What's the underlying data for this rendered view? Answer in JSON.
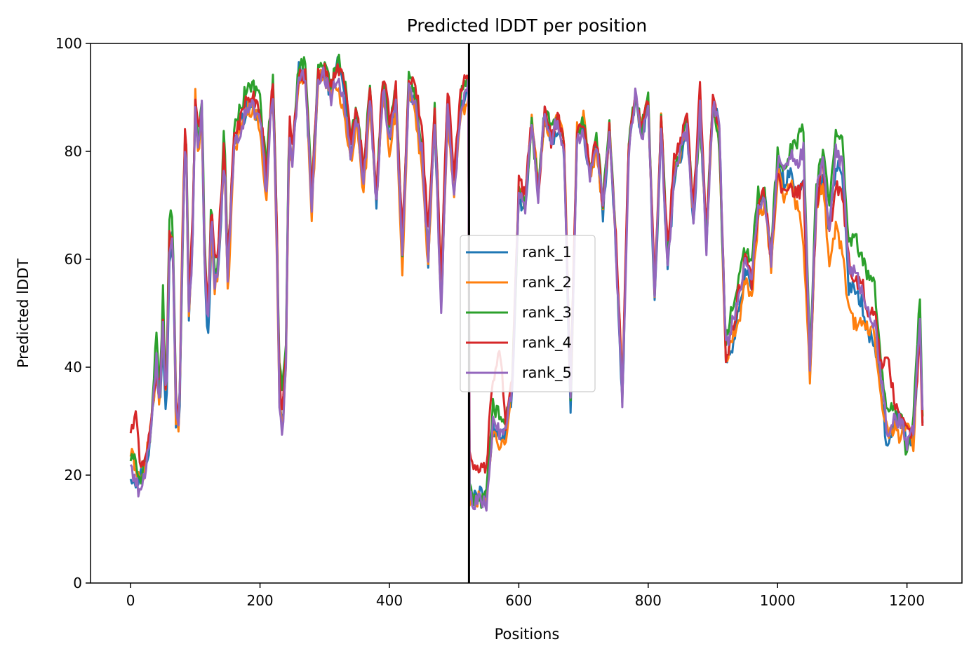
{
  "chart_data": {
    "type": "line",
    "title": "Predicted lDDT per position",
    "xlabel": "Positions",
    "ylabel": "Predicted lDDT",
    "xlim": [
      -62,
      1285
    ],
    "ylim": [
      0,
      100
    ],
    "xticks": [
      0,
      200,
      400,
      600,
      800,
      1000,
      1200
    ],
    "yticks": [
      0,
      20,
      40,
      60,
      80,
      100
    ],
    "grid": false,
    "legend_position": "center",
    "vertical_line_x": 523,
    "anchor_positions": [
      0,
      10,
      15,
      20,
      30,
      40,
      45,
      50,
      55,
      60,
      65,
      70,
      75,
      80,
      85,
      90,
      95,
      100,
      105,
      110,
      115,
      120,
      125,
      130,
      135,
      140,
      145,
      150,
      160,
      170,
      180,
      190,
      200,
      210,
      215,
      220,
      225,
      230,
      235,
      240,
      245,
      250,
      260,
      270,
      280,
      290,
      300,
      310,
      320,
      330,
      340,
      350,
      360,
      370,
      380,
      390,
      400,
      410,
      420,
      430,
      440,
      450,
      460,
      470,
      480,
      490,
      500,
      510,
      520,
      523,
      524,
      530,
      540,
      550,
      560,
      570,
      580,
      590,
      600,
      610,
      620,
      630,
      640,
      650,
      660,
      670,
      680,
      690,
      700,
      710,
      720,
      730,
      740,
      750,
      760,
      770,
      780,
      790,
      800,
      810,
      820,
      830,
      840,
      850,
      860,
      870,
      880,
      890,
      900,
      910,
      920,
      930,
      940,
      950,
      960,
      970,
      980,
      990,
      1000,
      1010,
      1020,
      1030,
      1040,
      1050,
      1060,
      1070,
      1080,
      1090,
      1100,
      1110,
      1120,
      1130,
      1140,
      1150,
      1160,
      1170,
      1180,
      1190,
      1200,
      1210,
      1220,
      1225
    ],
    "series": [
      {
        "name": "rank_1",
        "color": "#1f77b4",
        "values": [
          20,
          19,
          20,
          20,
          26,
          40,
          33,
          45,
          31,
          60,
          65,
          30,
          27,
          62,
          86,
          50,
          60,
          88,
          80,
          88,
          55,
          45,
          66,
          56,
          58,
          68,
          80,
          55,
          82,
          85,
          88,
          88,
          86,
          74,
          84,
          92,
          70,
          35,
          30,
          42,
          84,
          78,
          95,
          94,
          70,
          94,
          95,
          90,
          96,
          92,
          80,
          86,
          74,
          90,
          70,
          92,
          82,
          90,
          60,
          92,
          88,
          80,
          60,
          86,
          50,
          88,
          73,
          88,
          92,
          92,
          17,
          16,
          17,
          16,
          29,
          27,
          28,
          35,
          72,
          68,
          86,
          72,
          87,
          82,
          84,
          80,
          31,
          82,
          84,
          75,
          82,
          68,
          84,
          62,
          33,
          80,
          90,
          82,
          88,
          52,
          84,
          58,
          74,
          79,
          84,
          66,
          88,
          62,
          90,
          84,
          42,
          44,
          50,
          58,
          55,
          68,
          72,
          60,
          78,
          74,
          76,
          72,
          74,
          38,
          70,
          76,
          65,
          78,
          75,
          55,
          55,
          52,
          46,
          45,
          36,
          24,
          30,
          31,
          26,
          27,
          49,
          26
        ]
      },
      {
        "name": "rank_2",
        "color": "#ff7f0e",
        "values": [
          24,
          21,
          19,
          20,
          28,
          38,
          33,
          47,
          33,
          64,
          66,
          31,
          27,
          66,
          86,
          48,
          62,
          90,
          78,
          88,
          56,
          53,
          65,
          54,
          58,
          70,
          78,
          53,
          80,
          84,
          88,
          88,
          84,
          70,
          84,
          90,
          68,
          33,
          30,
          40,
          82,
          78,
          94,
          94,
          68,
          94,
          94,
          90,
          92,
          88,
          78,
          86,
          72,
          88,
          70,
          92,
          80,
          88,
          58,
          92,
          86,
          78,
          58,
          86,
          52,
          86,
          72,
          86,
          90,
          90,
          15,
          15,
          16,
          15,
          28,
          25,
          27,
          38,
          74,
          70,
          86,
          74,
          86,
          82,
          86,
          82,
          33,
          84,
          86,
          76,
          80,
          70,
          84,
          64,
          36,
          82,
          90,
          84,
          90,
          54,
          86,
          60,
          76,
          80,
          84,
          68,
          88,
          64,
          88,
          82,
          40,
          46,
          48,
          56,
          52,
          68,
          70,
          58,
          76,
          72,
          74,
          70,
          64,
          38,
          70,
          74,
          60,
          66,
          62,
          50,
          48,
          48,
          47,
          46,
          35,
          28,
          29,
          27,
          30,
          26,
          48,
          25
        ]
      },
      {
        "name": "rank_3",
        "color": "#2ca02c",
        "values": [
          23,
          22,
          19,
          22,
          25,
          46,
          35,
          54,
          34,
          68,
          69,
          34,
          30,
          60,
          88,
          52,
          62,
          88,
          82,
          90,
          60,
          50,
          72,
          58,
          60,
          70,
          86,
          58,
          84,
          88,
          92,
          92,
          90,
          76,
          86,
          93,
          72,
          40,
          36,
          44,
          86,
          82,
          96,
          96,
          72,
          96,
          96,
          92,
          97,
          94,
          82,
          88,
          76,
          92,
          72,
          94,
          84,
          92,
          62,
          94,
          90,
          82,
          62,
          88,
          56,
          90,
          75,
          90,
          93,
          93,
          17,
          15,
          15,
          16,
          33,
          31,
          30,
          37,
          73,
          70,
          85,
          72,
          88,
          84,
          86,
          82,
          35,
          84,
          86,
          76,
          84,
          70,
          86,
          64,
          35,
          82,
          90,
          84,
          90,
          54,
          86,
          60,
          76,
          80,
          86,
          68,
          86,
          64,
          90,
          80,
          44,
          52,
          56,
          62,
          60,
          72,
          72,
          62,
          80,
          76,
          80,
          82,
          84,
          42,
          74,
          80,
          70,
          84,
          82,
          62,
          64,
          60,
          57,
          56,
          40,
          32,
          32,
          31,
          24,
          30,
          54,
          25
        ]
      },
      {
        "name": "rank_4",
        "color": "#d62728",
        "values": [
          28,
          31,
          20,
          23,
          27,
          40,
          36,
          48,
          33,
          66,
          64,
          34,
          29,
          64,
          88,
          52,
          64,
          90,
          84,
          88,
          58,
          52,
          70,
          60,
          62,
          72,
          82,
          58,
          84,
          86,
          90,
          90,
          88,
          76,
          86,
          92,
          72,
          38,
          32,
          42,
          86,
          82,
          94,
          94,
          72,
          94,
          95,
          92,
          95,
          94,
          82,
          88,
          76,
          92,
          72,
          94,
          86,
          92,
          64,
          94,
          92,
          84,
          66,
          88,
          56,
          92,
          76,
          92,
          94,
          94,
          24,
          22,
          21,
          22,
          38,
          44,
          30,
          38,
          74,
          72,
          86,
          72,
          88,
          82,
          86,
          82,
          36,
          84,
          86,
          76,
          82,
          70,
          84,
          64,
          36,
          82,
          90,
          84,
          90,
          54,
          86,
          62,
          78,
          82,
          86,
          70,
          92,
          66,
          90,
          84,
          42,
          46,
          54,
          60,
          56,
          70,
          72,
          60,
          76,
          72,
          74,
          72,
          74,
          40,
          70,
          78,
          64,
          74,
          72,
          60,
          56,
          56,
          50,
          50,
          40,
          42,
          34,
          30,
          28,
          28,
          46,
          26
        ]
      },
      {
        "name": "rank_5",
        "color": "#9467bd",
        "values": [
          22,
          18,
          17,
          20,
          25,
          42,
          32,
          48,
          32,
          62,
          64,
          32,
          28,
          62,
          86,
          50,
          60,
          88,
          80,
          88,
          56,
          48,
          68,
          56,
          58,
          68,
          80,
          56,
          82,
          84,
          88,
          88,
          86,
          72,
          84,
          90,
          70,
          34,
          27,
          40,
          84,
          78,
          94,
          94,
          70,
          94,
          94,
          90,
          94,
          90,
          80,
          86,
          74,
          90,
          70,
          92,
          82,
          90,
          60,
          92,
          88,
          80,
          60,
          86,
          50,
          88,
          72,
          88,
          92,
          92,
          16,
          15,
          15,
          15,
          30,
          28,
          29,
          36,
          73,
          70,
          86,
          72,
          88,
          82,
          86,
          80,
          34,
          82,
          84,
          76,
          82,
          70,
          84,
          62,
          34,
          80,
          91,
          82,
          88,
          52,
          84,
          58,
          74,
          80,
          84,
          66,
          88,
          62,
          89,
          84,
          44,
          48,
          52,
          60,
          56,
          70,
          72,
          60,
          78,
          76,
          80,
          78,
          80,
          40,
          72,
          78,
          66,
          80,
          78,
          58,
          58,
          54,
          50,
          48,
          38,
          28,
          30,
          30,
          26,
          28,
          50,
          26
        ]
      }
    ]
  }
}
